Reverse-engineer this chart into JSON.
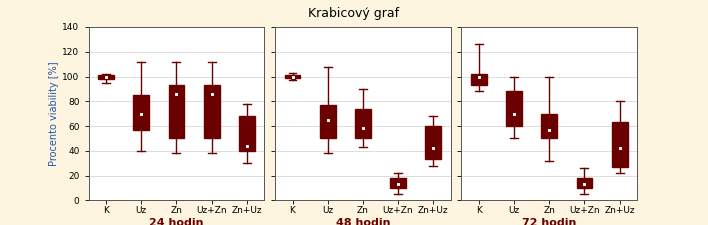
{
  "title": "Krabicový graf",
  "ylabel": "Procento viability [%]",
  "background_color": "#fdf5e0",
  "plot_bg_color": "#ffffff",
  "box_color": "#6b0000",
  "ylabel_color": "#2255aa",
  "xlabel_color": "#6b0000",
  "ylim": [
    0,
    140
  ],
  "yticks": [
    0,
    20,
    40,
    60,
    80,
    100,
    120,
    140
  ],
  "title_fontsize": 9,
  "ylabel_fontsize": 7,
  "xlabel_fontsize": 8,
  "tick_fontsize": 6.5,
  "subplots": [
    {
      "label": "24 hodin",
      "categories": [
        "K",
        "Uz",
        "Zn",
        "Uz+Zn",
        "Zn+Uz"
      ],
      "data": [
        {
          "whislo": 95,
          "q1": 98,
          "med": 100,
          "q3": 101,
          "whishi": 102,
          "mean": 100
        },
        {
          "whislo": 40,
          "q1": 57,
          "med": 70,
          "q3": 85,
          "whishi": 112,
          "mean": 70
        },
        {
          "whislo": 38,
          "q1": 50,
          "med": 87,
          "q3": 93,
          "whishi": 112,
          "mean": 86
        },
        {
          "whislo": 38,
          "q1": 50,
          "med": 87,
          "q3": 93,
          "whishi": 112,
          "mean": 86
        },
        {
          "whislo": 30,
          "q1": 40,
          "med": 44,
          "q3": 68,
          "whishi": 78,
          "mean": 44
        }
      ]
    },
    {
      "label": "48 hodin",
      "categories": [
        "K",
        "Uz",
        "Zn",
        "Uz+Zn",
        "Zn+Uz"
      ],
      "data": [
        {
          "whislo": 97,
          "q1": 99,
          "med": 100,
          "q3": 101,
          "whishi": 103,
          "mean": 100
        },
        {
          "whislo": 38,
          "q1": 50,
          "med": 65,
          "q3": 77,
          "whishi": 108,
          "mean": 65
        },
        {
          "whislo": 43,
          "q1": 50,
          "med": 58,
          "q3": 74,
          "whishi": 90,
          "mean": 58
        },
        {
          "whislo": 5,
          "q1": 10,
          "med": 13,
          "q3": 18,
          "whishi": 22,
          "mean": 13
        },
        {
          "whislo": 28,
          "q1": 33,
          "med": 42,
          "q3": 60,
          "whishi": 68,
          "mean": 42
        }
      ]
    },
    {
      "label": "72 hodin",
      "categories": [
        "K",
        "Uz",
        "Zn",
        "Uz+Zn",
        "Zn+Uz"
      ],
      "data": [
        {
          "whislo": 88,
          "q1": 93,
          "med": 100,
          "q3": 102,
          "whishi": 126,
          "mean": 100
        },
        {
          "whislo": 50,
          "q1": 60,
          "med": 70,
          "q3": 88,
          "whishi": 100,
          "mean": 70
        },
        {
          "whislo": 32,
          "q1": 50,
          "med": 57,
          "q3": 70,
          "whishi": 100,
          "mean": 57
        },
        {
          "whislo": 5,
          "q1": 10,
          "med": 13,
          "q3": 18,
          "whishi": 26,
          "mean": 13
        },
        {
          "whislo": 22,
          "q1": 27,
          "med": 42,
          "q3": 63,
          "whishi": 80,
          "mean": 42
        }
      ]
    }
  ]
}
